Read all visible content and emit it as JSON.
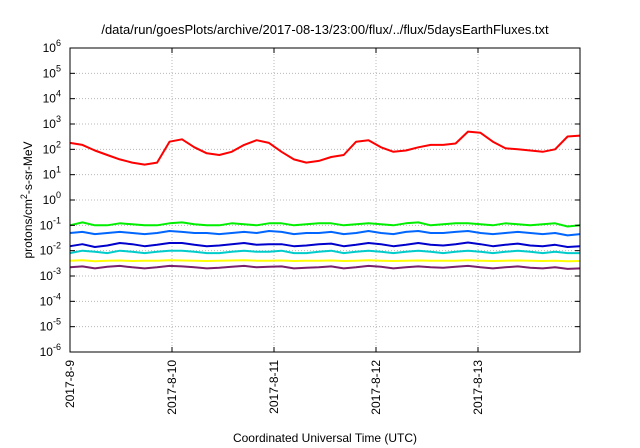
{
  "chart_data": {
    "type": "line",
    "title": "/data/run/goesPlots/archive/2017-08-13/23:00/flux/../flux/5daysEarthFluxes.txt",
    "xlabel": "Coordinated Universal Time (UTC)",
    "ylabel": "protons/cm2-s-sr-MeV",
    "ylabel_parts": [
      "protons/cm",
      "2",
      "-s-sr-MeV"
    ],
    "yscale": "log",
    "ylim": [
      -6,
      6
    ],
    "y_ticks": [
      {
        "exp": -6,
        "base": "10",
        "sup": "-6"
      },
      {
        "exp": -5,
        "base": "10",
        "sup": "-5"
      },
      {
        "exp": -4,
        "base": "10",
        "sup": "-4"
      },
      {
        "exp": -3,
        "base": "10",
        "sup": "-3"
      },
      {
        "exp": -2,
        "base": "10",
        "sup": "-2"
      },
      {
        "exp": -1,
        "base": "10",
        "sup": "-1"
      },
      {
        "exp": 0,
        "base": "10",
        "sup": "0"
      },
      {
        "exp": 1,
        "base": "10",
        "sup": "1"
      },
      {
        "exp": 2,
        "base": "10",
        "sup": "2"
      },
      {
        "exp": 3,
        "base": "10",
        "sup": "3"
      },
      {
        "exp": 4,
        "base": "10",
        "sup": "4"
      },
      {
        "exp": 5,
        "base": "10",
        "sup": "5"
      },
      {
        "exp": 6,
        "base": "10",
        "sup": "6"
      }
    ],
    "xlim": [
      "2017-8-9",
      "2017-8-14"
    ],
    "x_ticks": [
      "2017-8-9",
      "2017-8-10",
      "2017-8-11",
      "2017-8-12",
      "2017-8-13"
    ],
    "grid": true,
    "series": [
      {
        "color": "#ff0000",
        "values": [
          180,
          150,
          90,
          60,
          40,
          30,
          25,
          30,
          200,
          250,
          120,
          70,
          60,
          80,
          150,
          230,
          180,
          80,
          40,
          30,
          35,
          50,
          60,
          200,
          230,
          120,
          80,
          90,
          120,
          150,
          150,
          170,
          500,
          450,
          200,
          110,
          100,
          90,
          80,
          100,
          320,
          350
        ]
      },
      {
        "color": "#00ee00",
        "values": [
          0.1,
          0.13,
          0.1,
          0.1,
          0.12,
          0.11,
          0.1,
          0.1,
          0.12,
          0.13,
          0.11,
          0.1,
          0.1,
          0.12,
          0.11,
          0.1,
          0.12,
          0.12,
          0.1,
          0.11,
          0.12,
          0.12,
          0.1,
          0.11,
          0.12,
          0.11,
          0.1,
          0.12,
          0.13,
          0.1,
          0.11,
          0.12,
          0.12,
          0.11,
          0.1,
          0.12,
          0.11,
          0.1,
          0.11,
          0.12,
          0.09,
          0.1
        ]
      },
      {
        "color": "#0066ff",
        "values": [
          0.05,
          0.055,
          0.045,
          0.05,
          0.055,
          0.05,
          0.045,
          0.05,
          0.06,
          0.055,
          0.05,
          0.05,
          0.045,
          0.05,
          0.055,
          0.05,
          0.06,
          0.055,
          0.045,
          0.05,
          0.05,
          0.055,
          0.045,
          0.05,
          0.06,
          0.05,
          0.045,
          0.055,
          0.06,
          0.05,
          0.05,
          0.055,
          0.06,
          0.05,
          0.045,
          0.05,
          0.055,
          0.05,
          0.045,
          0.05,
          0.04,
          0.045
        ]
      },
      {
        "color": "#0000cc",
        "values": [
          0.015,
          0.018,
          0.014,
          0.016,
          0.02,
          0.018,
          0.015,
          0.017,
          0.02,
          0.02,
          0.017,
          0.015,
          0.016,
          0.018,
          0.02,
          0.017,
          0.018,
          0.018,
          0.015,
          0.016,
          0.018,
          0.019,
          0.015,
          0.017,
          0.02,
          0.018,
          0.015,
          0.017,
          0.02,
          0.017,
          0.016,
          0.018,
          0.021,
          0.018,
          0.015,
          0.017,
          0.019,
          0.016,
          0.015,
          0.017,
          0.014,
          0.015
        ]
      },
      {
        "color": "#00cccc",
        "values": [
          0.008,
          0.01,
          0.009,
          0.008,
          0.01,
          0.009,
          0.008,
          0.009,
          0.01,
          0.01,
          0.009,
          0.008,
          0.008,
          0.009,
          0.01,
          0.009,
          0.009,
          0.01,
          0.008,
          0.008,
          0.009,
          0.01,
          0.008,
          0.009,
          0.01,
          0.009,
          0.008,
          0.009,
          0.01,
          0.009,
          0.008,
          0.009,
          0.01,
          0.009,
          0.008,
          0.009,
          0.01,
          0.009,
          0.008,
          0.009,
          0.008,
          0.008
        ]
      },
      {
        "color": "#ffff00",
        "values": [
          0.004,
          0.0042,
          0.0038,
          0.004,
          0.0041,
          0.0039,
          0.004,
          0.004,
          0.0042,
          0.0041,
          0.004,
          0.0039,
          0.004,
          0.0041,
          0.0042,
          0.004,
          0.004,
          0.0041,
          0.0039,
          0.004,
          0.004,
          0.0041,
          0.0039,
          0.004,
          0.0042,
          0.004,
          0.0039,
          0.004,
          0.0041,
          0.004,
          0.004,
          0.004,
          0.0042,
          0.004,
          0.0039,
          0.004,
          0.0041,
          0.004,
          0.0039,
          0.004,
          0.0038,
          0.0039
        ]
      },
      {
        "color": "#7a1f6b",
        "values": [
          0.0022,
          0.0024,
          0.002,
          0.0023,
          0.0025,
          0.0022,
          0.002,
          0.0022,
          0.0025,
          0.0024,
          0.0022,
          0.002,
          0.0021,
          0.0023,
          0.0025,
          0.0022,
          0.0023,
          0.0024,
          0.002,
          0.0021,
          0.0022,
          0.0024,
          0.002,
          0.0022,
          0.0025,
          0.0023,
          0.002,
          0.0022,
          0.0024,
          0.0022,
          0.0021,
          0.0023,
          0.0025,
          0.0022,
          0.002,
          0.0022,
          0.0024,
          0.0021,
          0.002,
          0.0022,
          0.0019,
          0.002
        ]
      }
    ]
  }
}
